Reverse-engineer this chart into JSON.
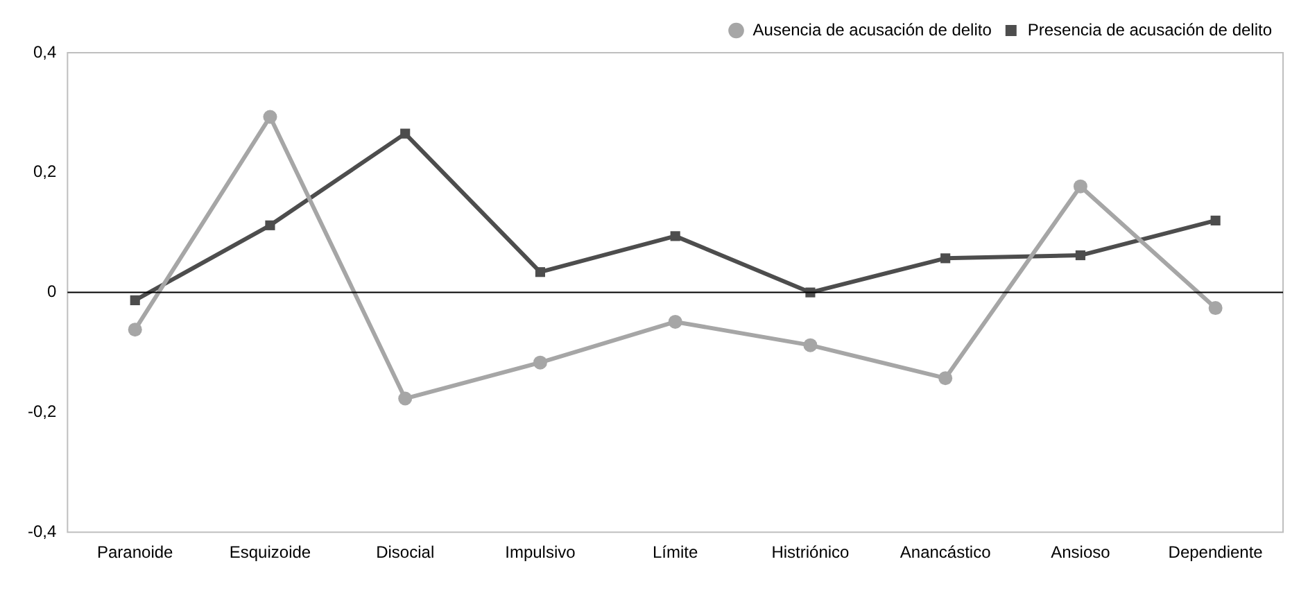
{
  "chart_data": {
    "type": "line",
    "categories": [
      "Paranoide",
      "Esquizoide",
      "Disocial",
      "Impulsivo",
      "Límite",
      "Histriónico",
      "Anancástico",
      "Ansioso",
      "Dependiente"
    ],
    "series": [
      {
        "name": "Ausencia de acusación de delito",
        "color": "#a6a6a6",
        "marker": "circle",
        "values": [
          -0.062,
          0.293,
          -0.177,
          -0.117,
          -0.049,
          -0.088,
          -0.143,
          0.177,
          -0.026
        ]
      },
      {
        "name": "Presencia de acusación de delito",
        "color": "#4d4d4d",
        "marker": "square",
        "values": [
          -0.013,
          0.112,
          0.265,
          0.034,
          0.094,
          0,
          0.057,
          0.062,
          0.12
        ]
      }
    ],
    "ylim": [
      -0.4,
      0.4
    ],
    "yticks": [
      {
        "value": -0.4,
        "label": "-0,4"
      },
      {
        "value": -0.2,
        "label": "-0,2"
      },
      0,
      {
        "value": 0.2,
        "label": "0,2"
      },
      {
        "value": 0.4,
        "label": "0,4"
      }
    ],
    "ref_lines": [
      {
        "axis": "y",
        "value": 0,
        "color": "#000000"
      }
    ],
    "grid": false,
    "legend": "top right",
    "line_style": "solid"
  }
}
